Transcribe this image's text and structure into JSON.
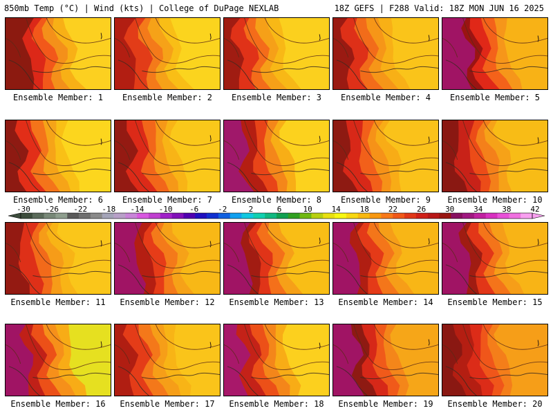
{
  "header": {
    "left_title": "850mb Temp (°C) | Wind (kts) | College of DuPage NEXLAB",
    "right_title": "18Z GEFS | F288 Valid: 18Z MON JUN 16 2025"
  },
  "members": [
    {
      "label": "Ensemble Member: 1",
      "palette": [
        "#8c1a10",
        "#dc2818",
        "#f2581a",
        "#f4901a",
        "#f8b016",
        "#fcd020"
      ],
      "purple": 0.15
    },
    {
      "label": "Ensemble Member: 2",
      "palette": [
        "#b21e12",
        "#e23c18",
        "#f47a1a",
        "#f6a218",
        "#f9be16",
        "#fbd41e"
      ],
      "purple": 0.0
    },
    {
      "label": "Ensemble Member: 3",
      "palette": [
        "#a01c12",
        "#e03218",
        "#f46c1a",
        "#f6a018",
        "#f8b816",
        "#fbd01e"
      ],
      "purple": 0.0
    },
    {
      "label": "Ensemble Member: 4",
      "palette": [
        "#9a1a12",
        "#de3018",
        "#f26c1a",
        "#f69618",
        "#f8b016",
        "#fac41a"
      ],
      "purple": 0.0
    },
    {
      "label": "Ensemble Member: 5",
      "palette": [
        "#a01464",
        "#9a1412",
        "#e02818",
        "#f4621a",
        "#f6961a",
        "#f8b216"
      ],
      "purple": 0.35
    },
    {
      "label": "Ensemble Member: 6",
      "palette": [
        "#8e1a12",
        "#e22e18",
        "#f4741a",
        "#f6a418",
        "#f9c016",
        "#fcd61e"
      ],
      "purple": 0.0
    },
    {
      "label": "Ensemble Member: 7",
      "palette": [
        "#941a12",
        "#dc2a18",
        "#f2661a",
        "#f69818",
        "#f8b416",
        "#fac81a"
      ],
      "purple": 0.0
    },
    {
      "label": "Ensemble Member: 8",
      "palette": [
        "#a0186a",
        "#b41e12",
        "#e84418",
        "#f4861a",
        "#f8ae16",
        "#fcd21e"
      ],
      "purple": 0.12
    },
    {
      "label": "Ensemble Member: 9",
      "palette": [
        "#8e1a12",
        "#d82818",
        "#f2601a",
        "#f69218",
        "#f8ac16",
        "#fac21a"
      ],
      "purple": 0.0
    },
    {
      "label": "Ensemble Member: 10",
      "palette": [
        "#8a1812",
        "#c82218",
        "#ec4c18",
        "#f4801a",
        "#f6a218",
        "#f8bc16"
      ],
      "purple": 0.0
    },
    {
      "label": "Ensemble Member: 11",
      "palette": [
        "#941a12",
        "#de3018",
        "#f26a1a",
        "#f69c18",
        "#f8b416",
        "#fac61a"
      ],
      "purple": 0.0
    },
    {
      "label": "Ensemble Member: 12",
      "palette": [
        "#a01464",
        "#b41e12",
        "#e63c18",
        "#f47a1a",
        "#f6a218",
        "#f8b816"
      ],
      "purple": 0.12
    },
    {
      "label": "Ensemble Member: 13",
      "palette": [
        "#a01464",
        "#a21c12",
        "#e03418",
        "#f4701a",
        "#f6a018",
        "#f9be16"
      ],
      "purple": 0.2
    },
    {
      "label": "Ensemble Member: 14",
      "palette": [
        "#a01464",
        "#b01e12",
        "#e43a18",
        "#f4761a",
        "#f69e18",
        "#f8b616"
      ],
      "purple": 0.2
    },
    {
      "label": "Ensemble Member: 15",
      "palette": [
        "#a01464",
        "#a01c12",
        "#e23618",
        "#f4741a",
        "#f69e18",
        "#f8b416"
      ],
      "purple": 0.22
    },
    {
      "label": "Ensemble Member: 16",
      "palette": [
        "#a01464",
        "#c02018",
        "#ec5018",
        "#f6901a",
        "#f8ac16",
        "#e6e020"
      ],
      "purple": 0.12
    },
    {
      "label": "Ensemble Member: 17",
      "palette": [
        "#b01e12",
        "#e43c18",
        "#f4781a",
        "#f69e18",
        "#f8b416",
        "#fac41a"
      ],
      "purple": 0.0
    },
    {
      "label": "Ensemble Member: 18",
      "palette": [
        "#a8186a",
        "#c42218",
        "#ec5018",
        "#f4861a",
        "#f8ac16",
        "#fcd01e"
      ],
      "purple": 0.06
    },
    {
      "label": "Ensemble Member: 19",
      "palette": [
        "#a01464",
        "#8e1a12",
        "#d62818",
        "#f05a1a",
        "#f4861a",
        "#f6a618"
      ],
      "purple": 0.25
    },
    {
      "label": "Ensemble Member: 20",
      "palette": [
        "#8a1812",
        "#b41e12",
        "#dc2c18",
        "#f0561a",
        "#f47e1a",
        "#f69e18"
      ],
      "purple": 0.0
    }
  ],
  "colorbar": {
    "labels": [
      "-30",
      "-26",
      "-22",
      "-18",
      "-14",
      "-10",
      "-6",
      "-2",
      "2",
      "6",
      "10",
      "14",
      "18",
      "22",
      "26",
      "30",
      "34",
      "38",
      "42"
    ],
    "colors": [
      "#3c4c3c",
      "#5a6a5a",
      "#788878",
      "#8e9e8e",
      "#5a5a5a",
      "#707070",
      "#8a8a8a",
      "#a4a4b8",
      "#b8a0c8",
      "#c884d8",
      "#d858e0",
      "#c040d0",
      "#a020c8",
      "#8010b8",
      "#5000b0",
      "#2010c0",
      "#1030d0",
      "#1060e0",
      "#10a0f0",
      "#10c8e0",
      "#10d0b0",
      "#10b880",
      "#10a050",
      "#30a020",
      "#70b810",
      "#b8d010",
      "#e8e010",
      "#f8f810",
      "#f8d810",
      "#f8b810",
      "#f89810",
      "#f87818",
      "#f05818",
      "#e03818",
      "#d02018",
      "#b81818",
      "#981410",
      "#881060",
      "#a01880",
      "#c020a0",
      "#d830c0",
      "#e850d8",
      "#f070e0",
      "#f8a0f0"
    ]
  }
}
